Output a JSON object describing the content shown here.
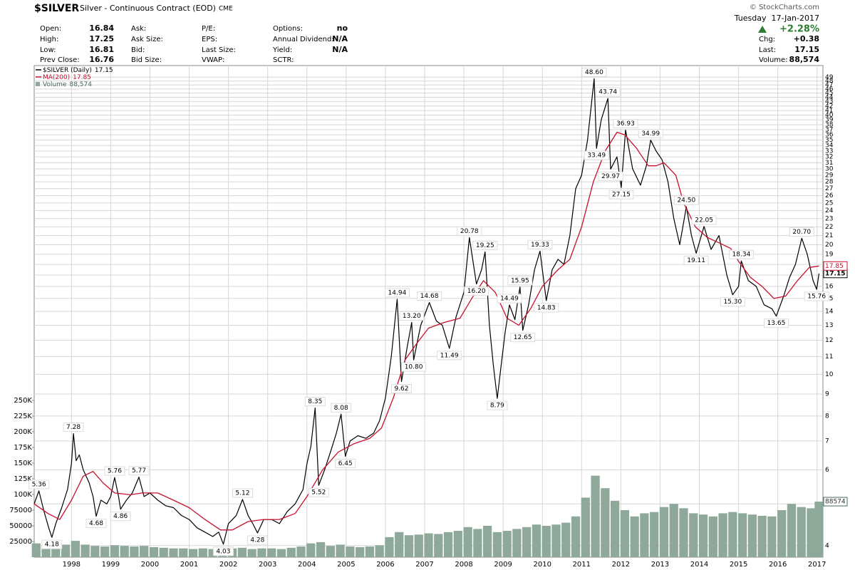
{
  "header": {
    "symbol": "$SILVER",
    "description": "Silver - Continuous Contract (EOD)",
    "exchange": "CME",
    "copyright": "© StockCharts.com",
    "date": "Tuesday  17-Jan-2017",
    "change_pct": "+2.28%",
    "quote": [
      [
        {
          "label": "Open:",
          "value": 16.84
        },
        {
          "label": "High:",
          "value": 17.25
        },
        {
          "label": "Low:",
          "value": 16.81
        },
        {
          "label": "Prev Close:",
          "value": 16.76
        }
      ],
      [
        {
          "label": "Ask:"
        },
        {
          "label": "Ask Size:"
        },
        {
          "label": "Bid:"
        },
        {
          "label": "Bid Size:"
        }
      ],
      [
        {
          "label": "P/E:"
        },
        {
          "label": "EPS:"
        },
        {
          "label": "Last Size:"
        },
        {
          "label": "VWAP:"
        }
      ],
      [
        {
          "label": "Options:",
          "value": "no"
        },
        {
          "label": "Annual Dividend:",
          "value": "N/A"
        },
        {
          "label": "Yield:",
          "value": "N/A"
        },
        {
          "label": "SCTR:"
        }
      ]
    ],
    "quote_right": [
      {
        "label": "Chg:",
        "value": "+0.38"
      },
      {
        "label": "Last:",
        "value": 17.15
      },
      {
        "label": "Volume:",
        "value": "88,574"
      }
    ]
  },
  "chart_data": {
    "type": "line",
    "log_scale": true,
    "grid": true,
    "xlim": [
      1997.05,
      2017.15
    ],
    "xticks": [
      1998,
      1999,
      2000,
      2001,
      2002,
      2003,
      2004,
      2005,
      2006,
      2007,
      2008,
      2009,
      2010,
      2011,
      2012,
      2013,
      2014,
      2015,
      2016,
      2017
    ],
    "ylim": [
      3.76,
      50
    ],
    "yticks": [
      4,
      5,
      6,
      7,
      8,
      9,
      10,
      11,
      12,
      13,
      14,
      15,
      16,
      17,
      18,
      19,
      20,
      21,
      22,
      23,
      24,
      25,
      26,
      27,
      28,
      29,
      30,
      31,
      32,
      33,
      34,
      35,
      36,
      37,
      38,
      39,
      40,
      41,
      42,
      43,
      44,
      45,
      46,
      47,
      48,
      49
    ],
    "y2lim": [
      0,
      771590
    ],
    "y2ticks": [
      25000,
      50000,
      75000,
      {
        "value": 100000,
        "label": "100K"
      },
      {
        "value": 125000,
        "label": "125K"
      },
      {
        "value": 150000,
        "label": "150K"
      },
      {
        "value": 175000,
        "label": "175K"
      },
      {
        "value": 200000,
        "label": "200K"
      },
      {
        "value": 225000,
        "label": "225K"
      },
      {
        "value": 250000,
        "label": "250K"
      }
    ],
    "series": [
      {
        "name": "$SILVER (Daily)",
        "last_label": "17.15",
        "color": "#000000",
        "kind": "line",
        "x": [
          1997.05,
          1997.17,
          1997.3,
          1997.42,
          1997.5,
          1997.6,
          1997.75,
          1997.9,
          1998.0,
          1998.05,
          1998.12,
          1998.2,
          1998.3,
          1998.45,
          1998.55,
          1998.63,
          1998.75,
          1998.9,
          1999.0,
          1999.1,
          1999.2,
          1999.25,
          1999.4,
          1999.55,
          1999.72,
          1999.85,
          2000.0,
          2000.2,
          2000.4,
          2000.6,
          2000.8,
          2001.0,
          2001.2,
          2001.4,
          2001.6,
          2001.75,
          2001.87,
          2002.0,
          2002.2,
          2002.36,
          2002.5,
          2002.62,
          2002.74,
          2002.9,
          2003.1,
          2003.3,
          2003.5,
          2003.7,
          2003.9,
          2004.0,
          2004.1,
          2004.21,
          2004.3,
          2004.45,
          2004.6,
          2004.75,
          2004.87,
          2004.98,
          2005.1,
          2005.3,
          2005.5,
          2005.7,
          2005.85,
          2006.0,
          2006.15,
          2006.3,
          2006.41,
          2006.55,
          2006.67,
          2006.72,
          2006.9,
          2007.12,
          2007.3,
          2007.45,
          2007.63,
          2007.8,
          2008.0,
          2008.14,
          2008.32,
          2008.45,
          2008.54,
          2008.65,
          2008.75,
          2008.85,
          2008.95,
          2009.05,
          2009.16,
          2009.3,
          2009.43,
          2009.5,
          2009.65,
          2009.8,
          2009.94,
          2010.1,
          2010.25,
          2010.4,
          2010.55,
          2010.7,
          2010.85,
          2011.0,
          2011.15,
          2011.32,
          2011.38,
          2011.5,
          2011.67,
          2011.74,
          2011.9,
          2012.01,
          2012.12,
          2012.3,
          2012.5,
          2012.65,
          2012.76,
          2012.9,
          2013.05,
          2013.2,
          2013.35,
          2013.5,
          2013.67,
          2013.8,
          2013.92,
          2014.12,
          2014.3,
          2014.5,
          2014.7,
          2014.85,
          2015.0,
          2015.07,
          2015.25,
          2015.45,
          2015.65,
          2015.85,
          2015.96,
          2016.15,
          2016.3,
          2016.45,
          2016.61,
          2016.75,
          2016.9,
          2016.99,
          2017.05
        ],
        "values": [
          5.0,
          5.36,
          4.8,
          4.4,
          4.18,
          4.5,
          4.9,
          5.4,
          6.2,
          7.28,
          6.3,
          6.5,
          6.0,
          5.6,
          5.2,
          4.68,
          5.1,
          5.0,
          5.2,
          5.76,
          5.2,
          4.86,
          5.1,
          5.3,
          5.77,
          5.2,
          5.3,
          5.1,
          4.95,
          4.9,
          4.7,
          4.6,
          4.4,
          4.3,
          4.2,
          4.3,
          4.03,
          4.5,
          4.7,
          5.12,
          4.7,
          4.5,
          4.28,
          4.6,
          4.6,
          4.5,
          4.8,
          5.0,
          5.4,
          6.2,
          6.8,
          8.35,
          5.52,
          6.0,
          6.6,
          7.3,
          8.08,
          6.45,
          7.0,
          7.2,
          7.1,
          7.3,
          7.8,
          8.8,
          11.0,
          14.94,
          9.62,
          11.5,
          13.2,
          10.8,
          13.0,
          14.68,
          13.3,
          13.0,
          11.49,
          13.6,
          15.5,
          20.78,
          16.2,
          17.5,
          19.25,
          13.0,
          10.5,
          8.79,
          10.5,
          12.5,
          14.49,
          13.4,
          15.95,
          12.65,
          14.5,
          17.5,
          19.33,
          14.83,
          17.5,
          18.5,
          18.0,
          21.0,
          27.0,
          29.0,
          35.0,
          48.6,
          33.49,
          39.0,
          43.74,
          29.97,
          32.0,
          27.15,
          36.93,
          30.0,
          27.5,
          30.5,
          34.99,
          33.0,
          31.5,
          28.0,
          23.0,
          20.0,
          24.5,
          21.0,
          19.11,
          22.05,
          19.5,
          21.0,
          17.0,
          15.3,
          16.0,
          18.34,
          16.5,
          16.0,
          14.5,
          14.2,
          13.65,
          15.2,
          16.8,
          18.0,
          20.7,
          19.0,
          16.5,
          15.76,
          17.15
        ]
      },
      {
        "name": "MA(200)",
        "last_label": "17.85",
        "color": "#c8102e",
        "kind": "line",
        "x": [
          1997.05,
          1997.4,
          1997.7,
          1998.0,
          1998.3,
          1998.55,
          1998.8,
          1999.1,
          1999.5,
          1999.8,
          2000.2,
          2000.6,
          2001.0,
          2001.4,
          2001.8,
          2002.1,
          2002.5,
          2002.9,
          2003.3,
          2003.7,
          2004.0,
          2004.4,
          2004.8,
          2005.2,
          2005.6,
          2005.9,
          2006.2,
          2006.5,
          2006.8,
          2007.1,
          2007.5,
          2007.9,
          2008.2,
          2008.5,
          2008.8,
          2009.1,
          2009.4,
          2009.7,
          2010.0,
          2010.4,
          2010.7,
          2011.0,
          2011.3,
          2011.6,
          2011.9,
          2012.1,
          2012.4,
          2012.7,
          2012.9,
          2013.1,
          2013.4,
          2013.6,
          2013.9,
          2014.2,
          2014.5,
          2014.8,
          2015.0,
          2015.3,
          2015.6,
          2015.9,
          2016.2,
          2016.5,
          2016.8,
          2017.05
        ],
        "values": [
          5.0,
          4.75,
          4.6,
          5.1,
          5.8,
          5.95,
          5.6,
          5.3,
          5.25,
          5.3,
          5.3,
          5.1,
          4.9,
          4.6,
          4.35,
          4.35,
          4.55,
          4.6,
          4.6,
          4.75,
          5.2,
          6.0,
          6.6,
          6.9,
          7.1,
          7.5,
          8.8,
          10.8,
          11.8,
          12.8,
          13.2,
          13.5,
          15.0,
          16.5,
          15.5,
          13.5,
          13.0,
          14.2,
          16.0,
          17.5,
          18.5,
          22.0,
          28.0,
          33.0,
          36.5,
          36.0,
          33.5,
          30.5,
          30.5,
          31.0,
          29.0,
          25.0,
          22.0,
          20.8,
          20.2,
          19.6,
          18.3,
          16.8,
          16.0,
          15.0,
          15.2,
          16.5,
          17.7,
          17.85
        ]
      },
      {
        "name": "Volume",
        "last_label": "88,574",
        "color": "#8ea89a",
        "kind": "bar",
        "axis": "y2",
        "x": [
          1997.1,
          1997.35,
          1997.6,
          1997.85,
          1998.1,
          1998.35,
          1998.6,
          1998.85,
          1999.1,
          1999.35,
          1999.6,
          1999.85,
          2000.1,
          2000.35,
          2000.6,
          2000.85,
          2001.1,
          2001.35,
          2001.6,
          2001.85,
          2002.1,
          2002.35,
          2002.6,
          2002.85,
          2003.1,
          2003.35,
          2003.6,
          2003.85,
          2004.1,
          2004.35,
          2004.6,
          2004.85,
          2005.1,
          2005.35,
          2005.6,
          2005.85,
          2006.1,
          2006.35,
          2006.6,
          2006.85,
          2007.1,
          2007.35,
          2007.6,
          2007.85,
          2008.1,
          2008.35,
          2008.6,
          2008.85,
          2009.1,
          2009.35,
          2009.6,
          2009.85,
          2010.1,
          2010.35,
          2010.6,
          2010.85,
          2011.1,
          2011.35,
          2011.6,
          2011.85,
          2012.1,
          2012.35,
          2012.6,
          2012.85,
          2013.1,
          2013.35,
          2013.6,
          2013.85,
          2014.1,
          2014.35,
          2014.6,
          2014.85,
          2015.1,
          2015.35,
          2015.6,
          2015.85,
          2016.1,
          2016.35,
          2016.6,
          2016.85,
          2017.05
        ],
        "values": [
          22000,
          18000,
          17000,
          20000,
          26000,
          20000,
          18000,
          17000,
          19000,
          18000,
          17000,
          18000,
          16000,
          15000,
          14000,
          14000,
          13000,
          14000,
          13000,
          15000,
          14000,
          15000,
          13000,
          14000,
          14000,
          13000,
          15000,
          17000,
          22000,
          24000,
          18000,
          20000,
          17000,
          16000,
          17000,
          19000,
          32000,
          40000,
          35000,
          36000,
          38000,
          37000,
          40000,
          42000,
          48000,
          45000,
          50000,
          40000,
          42000,
          45000,
          48000,
          52000,
          50000,
          52000,
          55000,
          65000,
          95000,
          130000,
          110000,
          90000,
          75000,
          65000,
          70000,
          72000,
          80000,
          85000,
          78000,
          70000,
          68000,
          65000,
          70000,
          72000,
          70000,
          68000,
          66000,
          65000,
          75000,
          85000,
          80000,
          78000,
          88574
        ]
      }
    ],
    "annotations": [
      {
        "x": 1997.17,
        "value": 5.36,
        "side": "above"
      },
      {
        "x": 1997.5,
        "value": 4.18,
        "side": "below"
      },
      {
        "x": 1998.05,
        "value": 7.28,
        "side": "above"
      },
      {
        "x": 1998.63,
        "value": 4.68,
        "side": "below"
      },
      {
        "x": 1999.1,
        "value": 5.76,
        "side": "above"
      },
      {
        "x": 1999.25,
        "value": 4.86,
        "side": "below"
      },
      {
        "x": 1999.72,
        "value": 5.77,
        "side": "above"
      },
      {
        "x": 2001.87,
        "value": 4.03,
        "side": "below"
      },
      {
        "x": 2002.36,
        "value": 5.12,
        "side": "above"
      },
      {
        "x": 2002.74,
        "value": 4.28,
        "side": "below"
      },
      {
        "x": 2004.21,
        "value": 8.35,
        "side": "above"
      },
      {
        "x": 2004.3,
        "value": 5.52,
        "side": "below"
      },
      {
        "x": 2004.87,
        "value": 8.08,
        "side": "above"
      },
      {
        "x": 2004.98,
        "value": 6.45,
        "side": "below"
      },
      {
        "x": 2006.3,
        "value": 14.94,
        "side": "above"
      },
      {
        "x": 2006.41,
        "value": 9.62,
        "side": "below"
      },
      {
        "x": 2006.67,
        "value": 13.2,
        "label": "13.20",
        "side": "above"
      },
      {
        "x": 2006.72,
        "value": 10.8,
        "label": "10.80",
        "side": "below"
      },
      {
        "x": 2007.12,
        "value": 14.68,
        "side": "above"
      },
      {
        "x": 2007.63,
        "value": 11.49,
        "side": "below"
      },
      {
        "x": 2008.14,
        "value": 20.78,
        "side": "above"
      },
      {
        "x": 2008.32,
        "value": 16.2,
        "label": "16.20",
        "side": "below"
      },
      {
        "x": 2008.54,
        "value": 19.25,
        "side": "above"
      },
      {
        "x": 2008.85,
        "value": 8.79,
        "side": "below"
      },
      {
        "x": 2009.16,
        "value": 14.49,
        "side": "above"
      },
      {
        "x": 2009.43,
        "value": 15.95,
        "side": "above"
      },
      {
        "x": 2009.5,
        "value": 12.65,
        "side": "below"
      },
      {
        "x": 2009.94,
        "value": 19.33,
        "side": "above"
      },
      {
        "x": 2010.1,
        "value": 14.83,
        "side": "below"
      },
      {
        "x": 2011.32,
        "value": 48.6,
        "label": "48.60",
        "side": "above"
      },
      {
        "x": 2011.38,
        "value": 33.49,
        "side": "below"
      },
      {
        "x": 2011.67,
        "value": 43.74,
        "side": "above"
      },
      {
        "x": 2011.74,
        "value": 29.97,
        "side": "below"
      },
      {
        "x": 2012.01,
        "value": 27.15,
        "side": "below"
      },
      {
        "x": 2012.12,
        "value": 36.93,
        "side": "above"
      },
      {
        "x": 2012.76,
        "value": 34.99,
        "side": "above"
      },
      {
        "x": 2013.67,
        "value": 24.5,
        "label": "24.50",
        "side": "above"
      },
      {
        "x": 2013.92,
        "value": 19.11,
        "side": "below"
      },
      {
        "x": 2014.12,
        "value": 22.05,
        "side": "above"
      },
      {
        "x": 2014.85,
        "value": 15.3,
        "label": "15.30",
        "side": "below"
      },
      {
        "x": 2015.07,
        "value": 18.34,
        "side": "above"
      },
      {
        "x": 2015.96,
        "value": 13.65,
        "side": "below"
      },
      {
        "x": 2016.61,
        "value": 20.7,
        "label": "20.70",
        "side": "above"
      },
      {
        "x": 2016.99,
        "value": 15.76,
        "side": "below"
      }
    ]
  }
}
